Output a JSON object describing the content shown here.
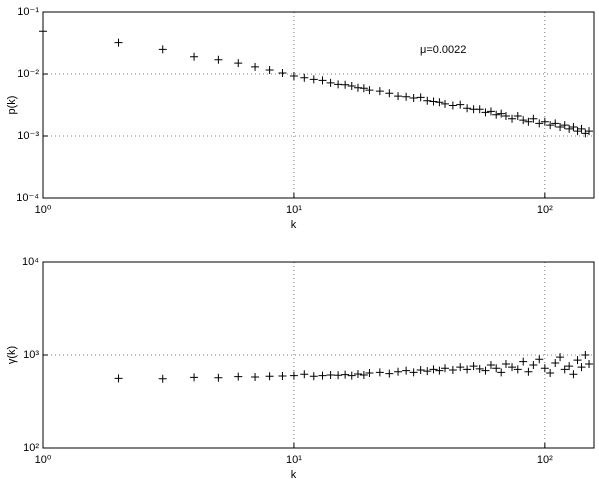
{
  "chart_data": [
    {
      "type": "scatter",
      "xlabel": "k",
      "ylabel": "p(k)",
      "annotation": "μ=0.0022",
      "xscale": "log",
      "yscale": "log",
      "grid": true,
      "color": "#000000",
      "marker": "+",
      "xlim": [
        1,
        157
      ],
      "ylim": [
        0.0001,
        0.1
      ],
      "xticks": [
        {
          "value": 1,
          "label": "10⁰"
        },
        {
          "value": 10,
          "label": "10¹"
        },
        {
          "value": 100,
          "label": "10²"
        }
      ],
      "yticks": [
        {
          "value": 0.0001,
          "label": "10⁻⁴"
        },
        {
          "value": 0.001,
          "label": "10⁻³"
        },
        {
          "value": 0.01,
          "label": "10⁻²"
        },
        {
          "value": 0.1,
          "label": "10⁻¹"
        }
      ],
      "x": [
        1,
        2,
        3,
        4,
        5,
        6,
        7,
        8,
        9,
        10,
        11,
        12,
        13,
        14,
        15,
        16,
        17,
        18,
        19,
        20,
        22,
        24,
        26,
        28,
        30,
        32,
        34,
        36,
        38,
        40,
        43,
        46,
        49,
        52,
        55,
        58,
        61,
        64,
        67,
        70,
        74,
        78,
        82,
        86,
        90,
        95,
        100,
        105,
        110,
        115,
        120,
        125,
        130,
        135,
        140,
        145,
        150
      ],
      "values": [
        0.049,
        0.032,
        0.025,
        0.019,
        0.017,
        0.015,
        0.013,
        0.0116,
        0.0104,
        0.0093,
        0.0087,
        0.0082,
        0.0079,
        0.0072,
        0.0068,
        0.0067,
        0.0064,
        0.006,
        0.0059,
        0.0055,
        0.0053,
        0.0049,
        0.0044,
        0.0043,
        0.0041,
        0.0042,
        0.0037,
        0.0036,
        0.0035,
        0.0033,
        0.0031,
        0.0032,
        0.0028,
        0.0027,
        0.0027,
        0.0024,
        0.0025,
        0.0022,
        0.0023,
        0.0021,
        0.0019,
        0.0021,
        0.0018,
        0.0017,
        0.0019,
        0.0016,
        0.0017,
        0.0015,
        0.0016,
        0.0014,
        0.0015,
        0.0013,
        0.0014,
        0.0012,
        0.0013,
        0.0011,
        0.0012
      ]
    },
    {
      "type": "scatter",
      "xlabel": "k",
      "ylabel": "γ(k)",
      "xscale": "log",
      "yscale": "log",
      "grid": true,
      "color": "#000000",
      "marker": "+",
      "xlim": [
        1,
        157
      ],
      "ylim": [
        100,
        10000
      ],
      "xticks": [
        {
          "value": 1,
          "label": "10⁰"
        },
        {
          "value": 10,
          "label": "10¹"
        },
        {
          "value": 100,
          "label": "10²"
        }
      ],
      "yticks": [
        {
          "value": 100,
          "label": "10²"
        },
        {
          "value": 1000,
          "label": "10³"
        },
        {
          "value": 10000,
          "label": "10⁴"
        }
      ],
      "x": [
        2,
        3,
        4,
        5,
        6,
        7,
        8,
        9,
        10,
        11,
        12,
        13,
        14,
        15,
        16,
        17,
        18,
        19,
        20,
        22,
        24,
        26,
        28,
        30,
        32,
        34,
        36,
        38,
        40,
        43,
        46,
        49,
        52,
        55,
        58,
        61,
        64,
        67,
        70,
        74,
        78,
        82,
        86,
        90,
        95,
        100,
        105,
        110,
        115,
        120,
        125,
        130,
        135,
        140,
        145,
        150
      ],
      "values": [
        560,
        555,
        575,
        570,
        585,
        580,
        590,
        595,
        600,
        620,
        590,
        600,
        610,
        605,
        615,
        600,
        625,
        610,
        640,
        650,
        630,
        660,
        680,
        650,
        690,
        670,
        700,
        680,
        720,
        690,
        740,
        700,
        760,
        710,
        680,
        780,
        720,
        650,
        800,
        740,
        700,
        850,
        660,
        780,
        900,
        720,
        640,
        820,
        950,
        700,
        760,
        620,
        880,
        740,
        1000,
        800
      ]
    }
  ]
}
